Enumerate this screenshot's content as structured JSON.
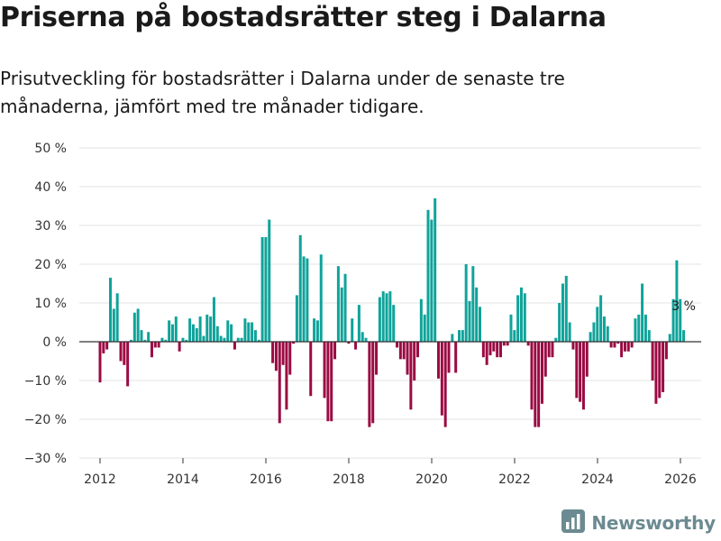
{
  "header": {
    "title": "Priserna på bostadsrätter steg i Dalarna",
    "subtitle": "Prisutveckling för bostadsrätter i Dalarna under de senaste tre månaderna, jämfört med tre månader tidigare."
  },
  "brand": {
    "name": "Newsworthy",
    "icon": "newsworthy-logo-icon"
  },
  "colors": {
    "positive": "#0fa39a",
    "negative": "#9b0a43",
    "grid": "#e3e3e3",
    "axis": "#333333"
  },
  "chart_data": {
    "type": "bar",
    "title": "Priserna på bostadsrätter steg i Dalarna",
    "xlabel": "",
    "ylabel": "",
    "ylim": [
      -30,
      50
    ],
    "yticks": [
      -30,
      -20,
      -10,
      0,
      10,
      20,
      30,
      40,
      50
    ],
    "ytick_labels": [
      "−30 %",
      "−20 %",
      "−10 %",
      "0 %",
      "10 %",
      "20 %",
      "30 %",
      "40 %",
      "50 %"
    ],
    "xlim": [
      2011.5,
      2026.5
    ],
    "xticks": [
      2012,
      2014,
      2016,
      2018,
      2020,
      2022,
      2024,
      2026
    ],
    "xtick_labels": [
      "2012",
      "2014",
      "2016",
      "2018",
      "2020",
      "2022",
      "2024",
      "2026"
    ],
    "x_start": 2012.0,
    "x_step": 0.0833,
    "values": [
      -10.5,
      -3,
      -2,
      16.5,
      8.5,
      12.5,
      -5,
      -6,
      -11.5,
      0.5,
      7.5,
      8.5,
      3,
      0.5,
      2.5,
      -4,
      -1.5,
      -1.5,
      1,
      0.5,
      5.5,
      4.5,
      6.5,
      -2.5,
      1,
      0.5,
      6,
      4.5,
      3.5,
      6.5,
      1.5,
      7,
      6.5,
      11.5,
      4,
      1.5,
      1,
      5.5,
      4.5,
      -2,
      1,
      1,
      6,
      5,
      5,
      3,
      0.5,
      27,
      27,
      31.5,
      -5.5,
      -7.5,
      -21,
      -6,
      -17.5,
      -8.5,
      -0.5,
      12,
      27.5,
      22,
      21.5,
      -14,
      6,
      5.5,
      22.5,
      -14.5,
      -20.5,
      -20.5,
      -4.5,
      19.5,
      14,
      17.5,
      -0.5,
      6,
      -2,
      9.5,
      2.5,
      1,
      -22,
      -21,
      -8.5,
      11.5,
      13,
      12.5,
      13,
      9.5,
      -1.5,
      -4.5,
      -4.5,
      -8.5,
      -17.5,
      -10,
      -4,
      11,
      7,
      34,
      31.5,
      37,
      -9.5,
      -19,
      -22,
      -8,
      2,
      -8,
      3,
      3,
      20,
      10.5,
      19.5,
      14,
      9,
      -4,
      -6,
      -3.5,
      -2.5,
      -4,
      -4,
      -1,
      -1,
      7,
      3,
      12,
      14,
      12.5,
      -1,
      -17.5,
      -22,
      -22,
      -16,
      -9,
      -4,
      -4,
      1,
      10,
      15,
      17,
      5,
      -2,
      -14.5,
      -15.5,
      -17.5,
      -9,
      2.5,
      5,
      9,
      12,
      6.5,
      4,
      -1.5,
      -1.5,
      -0.5,
      -4,
      -2.5,
      -2.5,
      -1.5,
      6,
      7,
      15,
      7,
      3,
      -10,
      -16,
      -14.5,
      -13,
      -4.5,
      2,
      11,
      21,
      11,
      3
    ],
    "annotation": {
      "text": "3 %",
      "value": 3
    }
  }
}
